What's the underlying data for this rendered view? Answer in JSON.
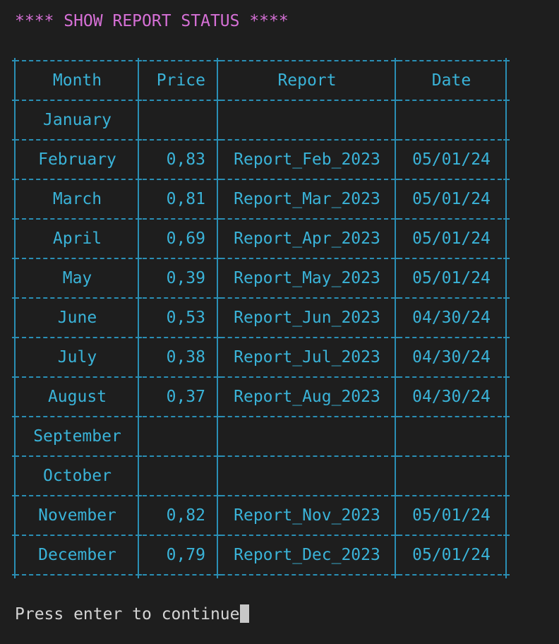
{
  "title": "**** SHOW REPORT STATUS ****",
  "table": {
    "headers": {
      "month": "Month",
      "price": "Price",
      "report": "Report",
      "date": "Date"
    },
    "rows": [
      {
        "month": "January",
        "price": "",
        "report": "",
        "date": ""
      },
      {
        "month": "February",
        "price": "0,83",
        "report": "Report_Feb_2023",
        "date": "05/01/24"
      },
      {
        "month": "March",
        "price": "0,81",
        "report": "Report_Mar_2023",
        "date": "05/01/24"
      },
      {
        "month": "April",
        "price": "0,69",
        "report": "Report_Apr_2023",
        "date": "05/01/24"
      },
      {
        "month": "May",
        "price": "0,39",
        "report": "Report_May_2023",
        "date": "05/01/24"
      },
      {
        "month": "June",
        "price": "0,53",
        "report": "Report_Jun_2023",
        "date": "04/30/24"
      },
      {
        "month": "July",
        "price": "0,38",
        "report": "Report_Jul_2023",
        "date": "04/30/24"
      },
      {
        "month": "August",
        "price": "0,37",
        "report": "Report_Aug_2023",
        "date": "04/30/24"
      },
      {
        "month": "September",
        "price": "",
        "report": "",
        "date": ""
      },
      {
        "month": "October",
        "price": "",
        "report": "",
        "date": ""
      },
      {
        "month": "November",
        "price": "0,82",
        "report": "Report_Nov_2023",
        "date": "05/01/24"
      },
      {
        "month": "December",
        "price": "0,79",
        "report": "Report_Dec_2023",
        "date": "05/01/24"
      }
    ]
  },
  "prompt": "Press enter to continue",
  "colors": {
    "background": "#1e1e1e",
    "title": "#d670d6",
    "table": "#3ab3d8",
    "border": "#2a8fb5",
    "prompt": "#d4d4d4"
  }
}
